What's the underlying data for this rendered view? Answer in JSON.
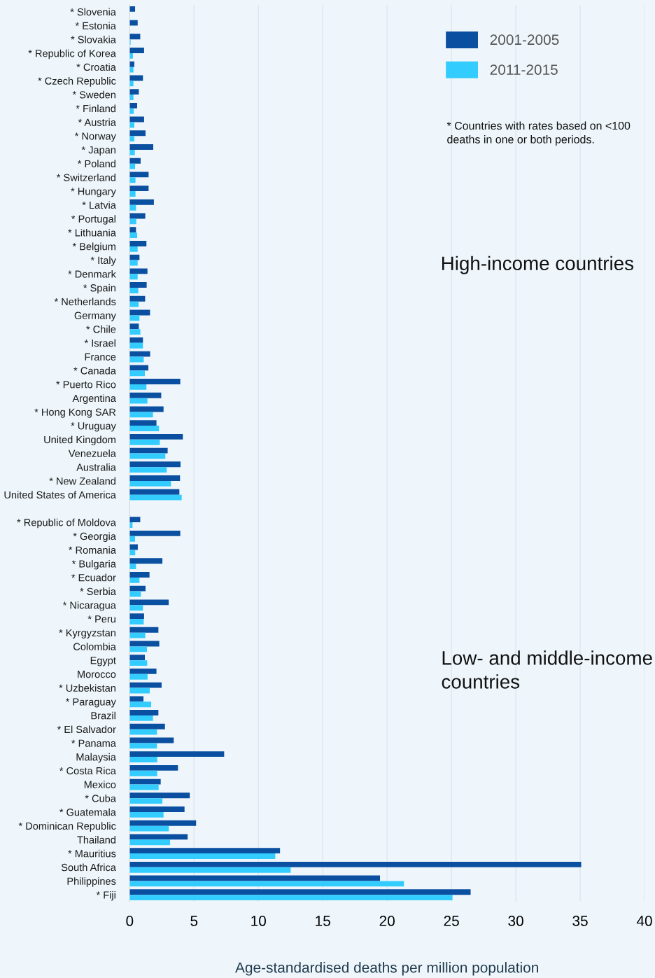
{
  "chart_data": {
    "type": "bar",
    "orientation": "horizontal",
    "xlabel": "Age-standardised deaths per million population",
    "categories": [
      "* Slovenia",
      "* Estonia",
      "* Slovakia",
      "* Republic of Korea",
      "* Croatia",
      "* Czech Republic",
      "* Sweden",
      "* Finland",
      "* Austria",
      "* Norway",
      "* Japan",
      "* Poland",
      "* Switzerland",
      "* Hungary",
      "* Latvia",
      "* Portugal",
      "* Lithuania",
      "* Belgium",
      "* Italy",
      "* Denmark",
      "* Spain",
      "* Netherlands",
      "Germany",
      "* Chile",
      "* Israel",
      "France",
      "* Canada",
      "* Puerto Rico",
      "Argentina",
      "* Hong Kong SAR",
      "* Uruguay",
      "United Kingdom",
      "Venezuela",
      "Australia",
      "* New Zealand",
      "United States of America",
      null,
      "* Republic of Moldova",
      "* Georgia",
      "* Romania",
      "* Bulgaria",
      "* Ecuador",
      "* Serbia",
      "* Nicaragua",
      "* Peru",
      "* Kyrgyzstan",
      "Colombia",
      "Egypt",
      "Morocco",
      "* Uzbekistan",
      "* Paraguay",
      "Brazil",
      "* El Salvador",
      "* Panama",
      "Malaysia",
      "* Costa Rica",
      "Mexico",
      "* Cuba",
      "* Guatemala",
      "* Dominican Republic",
      "Thailand",
      "* Mauritius",
      "South Africa",
      "Philippines",
      "* Fiji"
    ],
    "series": [
      {
        "name": "2001-2005",
        "color": "#0a4fa0",
        "values": [
          0.42,
          0.62,
          0.82,
          1.12,
          0.36,
          1.03,
          0.71,
          0.58,
          1.12,
          1.23,
          1.83,
          0.85,
          1.47,
          1.47,
          1.88,
          1.21,
          0.49,
          1.3,
          0.76,
          1.38,
          1.32,
          1.2,
          1.58,
          0.71,
          1.03,
          1.59,
          1.45,
          3.93,
          2.45,
          2.63,
          2.08,
          4.13,
          2.95,
          3.95,
          3.91,
          3.86,
          null,
          0.82,
          3.93,
          0.63,
          2.54,
          1.54,
          1.23,
          3.03,
          1.12,
          2.23,
          2.3,
          1.18,
          2.08,
          2.48,
          1.07,
          2.23,
          2.74,
          3.42,
          7.34,
          3.75,
          2.41,
          4.67,
          4.26,
          5.16,
          4.5,
          11.68,
          35.08,
          19.45,
          26.49
        ]
      },
      {
        "name": "2011-2015",
        "color": "#33ccff",
        "values": [
          0,
          0,
          0.07,
          0.25,
          0.29,
          0.29,
          0.29,
          0.31,
          0.36,
          0.36,
          0.4,
          0.42,
          0.45,
          0.45,
          0.49,
          0.51,
          0.58,
          0.62,
          0.62,
          0.62,
          0.67,
          0.69,
          0.76,
          0.83,
          1.03,
          1.09,
          1.18,
          1.3,
          1.38,
          1.81,
          2.28,
          2.34,
          2.77,
          2.88,
          3.21,
          4.04,
          null,
          0.22,
          0.42,
          0.43,
          0.49,
          0.76,
          0.87,
          1.03,
          1.09,
          1.21,
          1.34,
          1.36,
          1.39,
          1.56,
          1.67,
          1.81,
          2.12,
          2.12,
          2.14,
          2.14,
          2.25,
          2.54,
          2.63,
          3.04,
          3.14,
          11.31,
          12.51,
          21.31,
          25.08
        ]
      }
    ],
    "xlim": [
      0,
      40
    ],
    "xticks": [
      0,
      5,
      10,
      15,
      20,
      25,
      30,
      35,
      40
    ],
    "grid": "x",
    "legend": "top right",
    "annotations": [
      "* Countries with rates based on <100 deaths in one or both periods.",
      "High-income countries",
      "Low- and middle-income countries"
    ]
  }
}
